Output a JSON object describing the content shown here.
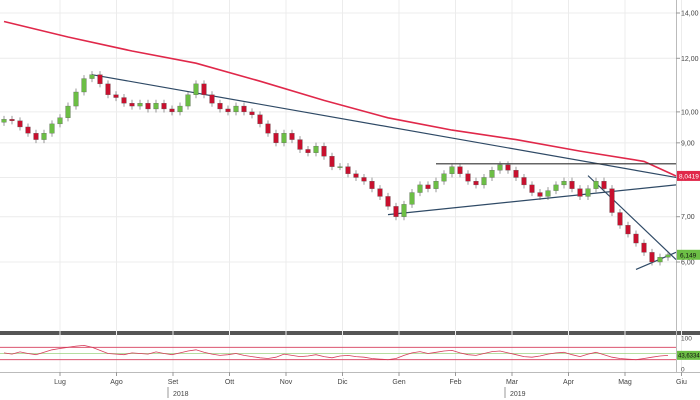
{
  "toolbar": {
    "icons": [
      "move-icon",
      "zoom-icon",
      "pencil-icon",
      "expand-icon"
    ],
    "glyphs": [
      "✥",
      "⊕",
      "✎",
      "⤢"
    ],
    "badge": "0"
  },
  "colors": {
    "up_candle": "#6cbe45",
    "down_candle": "#c8102e",
    "moving_average": "#e0284a",
    "trendline": "#2f4a66",
    "resistance": "#333333",
    "oscillator": "#d63c5a",
    "oscillator_bands": "#d63c5a",
    "osc_mid": "#6cbe45",
    "last_price_bg": "#6cbe45",
    "ma_label_bg": "#e0284a"
  },
  "chart_data": [
    {
      "type": "candlestick",
      "title": "",
      "x_labels": [
        "Lug",
        "Ago",
        "Set",
        "Ott",
        "Nov",
        "Dic",
        "Gen",
        "Feb",
        "Mar",
        "Apr",
        "Mag",
        "Giu"
      ],
      "year_labels": [
        "2018",
        "2019"
      ],
      "y_axis": {
        "scale": "log",
        "ticks": [
          6.0,
          7.0,
          8.0,
          9.0,
          10.0,
          12.0,
          14.0
        ],
        "tick_labels": [
          "6,00",
          "7,00",
          "8,00",
          "9,00",
          "10,00",
          "12,00",
          "14,00"
        ],
        "ylim": [
          5.5,
          15.0
        ]
      },
      "grid": true,
      "price_labels": {
        "ma_value": "8,0419",
        "last_price": "6,149",
        "ma_numeric": 8.0419,
        "last_numeric": 6.149
      },
      "price_closes": [
        9.75,
        9.7,
        9.5,
        9.3,
        9.1,
        9.3,
        9.6,
        9.8,
        10.2,
        10.7,
        11.2,
        11.35,
        11.0,
        10.6,
        10.5,
        10.3,
        10.2,
        10.3,
        10.1,
        10.3,
        10.1,
        10.0,
        10.2,
        10.6,
        11.0,
        10.6,
        10.3,
        10.1,
        10.0,
        10.2,
        10.0,
        9.9,
        9.6,
        9.3,
        9.0,
        9.3,
        9.1,
        8.8,
        8.7,
        8.9,
        8.6,
        8.3,
        8.3,
        8.1,
        8.0,
        7.9,
        7.7,
        7.5,
        7.25,
        7.0,
        7.3,
        7.6,
        7.8,
        7.7,
        7.9,
        8.1,
        8.3,
        8.1,
        7.9,
        7.8,
        8.0,
        8.2,
        8.35,
        8.2,
        8.0,
        7.8,
        7.6,
        7.5,
        7.65,
        7.8,
        7.9,
        7.7,
        7.5,
        7.7,
        7.9,
        7.7,
        7.1,
        6.8,
        6.6,
        6.4,
        6.2,
        6.0,
        6.1,
        6.15
      ],
      "series": [
        {
          "values_note": "",
          "name": ""
        }
      ],
      "moving_average": {
        "points": [
          [
            0,
            13.6
          ],
          [
            8,
            12.9
          ],
          [
            16,
            12.3
          ],
          [
            24,
            11.8
          ],
          [
            32,
            11.1
          ],
          [
            40,
            10.4
          ],
          [
            48,
            9.8
          ],
          [
            56,
            9.4
          ],
          [
            64,
            9.1
          ],
          [
            72,
            8.75
          ],
          [
            80,
            8.45
          ],
          [
            84,
            8.04
          ]
        ]
      },
      "trendlines": [
        {
          "from": [
            11,
            11.35
          ],
          "to": [
            84,
            8.0
          ]
        },
        {
          "from": [
            48,
            7.05
          ],
          "to": [
            84,
            7.8
          ]
        },
        {
          "from": [
            54,
            8.38
          ],
          "to": [
            84,
            8.38
          ]
        },
        {
          "from": [
            73,
            8.05
          ],
          "to": [
            84,
            6.05
          ]
        },
        {
          "from": [
            79,
            5.85
          ],
          "to": [
            84,
            6.2
          ]
        }
      ]
    },
    {
      "type": "line",
      "title": "",
      "name": "oscillator",
      "ylim": [
        0,
        100
      ],
      "bands": [
        70,
        30
      ],
      "tick_labels": [
        "100",
        "50",
        "0"
      ],
      "value_label": "43,6334",
      "values": [
        52,
        48,
        55,
        50,
        46,
        54,
        62,
        66,
        70,
        74,
        76,
        70,
        60,
        50,
        48,
        46,
        52,
        50,
        48,
        55,
        50,
        46,
        52,
        58,
        62,
        54,
        48,
        44,
        46,
        50,
        44,
        40,
        36,
        34,
        38,
        48,
        44,
        40,
        42,
        46,
        40,
        36,
        42,
        44,
        40,
        38,
        34,
        32,
        30,
        34,
        44,
        52,
        56,
        50,
        54,
        58,
        60,
        52,
        46,
        44,
        50,
        56,
        58,
        52,
        46,
        40,
        38,
        42,
        48,
        52,
        54,
        46,
        40,
        48,
        54,
        46,
        38,
        34,
        32,
        30,
        34,
        38,
        42,
        44
      ]
    }
  ]
}
